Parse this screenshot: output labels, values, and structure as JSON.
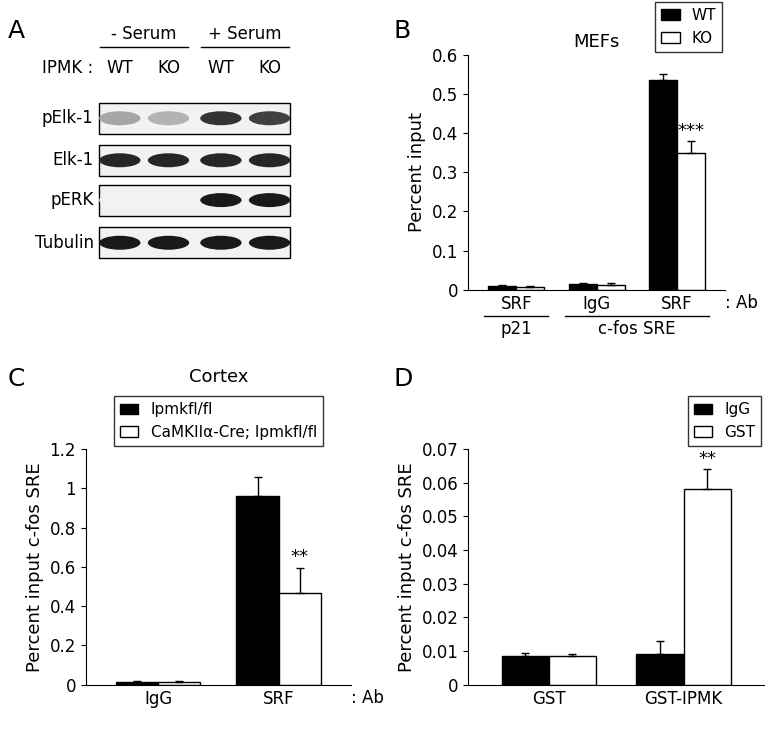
{
  "blot": {
    "panel_label": "A",
    "header_label": "IPMK :",
    "conditions": [
      {
        "label": "- Serum",
        "lanes": [
          "WT",
          "KO"
        ]
      },
      {
        "label": "+ Serum",
        "lanes": [
          "WT",
          "KO"
        ]
      }
    ],
    "rows": [
      {
        "label": "pElk-1",
        "intensity": [
          0.35,
          0.3,
          0.8,
          0.75
        ]
      },
      {
        "label": "Elk-1",
        "intensity": [
          0.85,
          0.85,
          0.85,
          0.85
        ]
      },
      {
        "label": "pERK",
        "intensity": [
          0.05,
          0.05,
          0.9,
          0.9
        ]
      },
      {
        "label": "Tubulin",
        "intensity": [
          0.9,
          0.9,
          0.9,
          0.9
        ]
      }
    ]
  },
  "chart_data": [
    {
      "panel_label": "B",
      "type": "bar",
      "title": "MEFs",
      "categories": [
        "SRF",
        "IgG",
        "SRF"
      ],
      "group_labels": [
        "p21",
        "c-fos SRE",
        "c-fos SRE"
      ],
      "x_note": ": Ab",
      "y_label": "Percent input",
      "ylim": [
        0,
        0.6
      ],
      "yticks": [
        0,
        0.1,
        0.2,
        0.3,
        0.4,
        0.5,
        0.6
      ],
      "legend": "upper right",
      "series": [
        {
          "name": "WT",
          "color": "#000000",
          "values": [
            0.01,
            0.015,
            0.535
          ],
          "errors": [
            0.002,
            0.003,
            0.015
          ],
          "marks": [
            null,
            null,
            null
          ]
        },
        {
          "name": "KO",
          "color": "#ffffff",
          "values": [
            0.008,
            0.013,
            0.35
          ],
          "errors": [
            0.002,
            0.003,
            0.03
          ],
          "marks": [
            null,
            null,
            "***"
          ]
        }
      ]
    },
    {
      "panel_label": "C",
      "type": "bar",
      "title": "Cortex",
      "categories": [
        "IgG",
        "SRF"
      ],
      "x_note": ": Ab",
      "y_label": "Percent input c-fos SRE",
      "ylim": [
        0,
        1.2
      ],
      "yticks": [
        0,
        0.2,
        0.4,
        0.6,
        0.8,
        1,
        1.2
      ],
      "legend": "upper center",
      "series": [
        {
          "name": "Ipmkfl/fl",
          "color": "#000000",
          "values": [
            0.015,
            0.96
          ],
          "errors": [
            0.005,
            0.1
          ],
          "marks": [
            null,
            null
          ]
        },
        {
          "name": "CaMKIIα-Cre; Ipmkfl/fl",
          "color": "#ffffff",
          "values": [
            0.015,
            0.465
          ],
          "errors": [
            0.005,
            0.13
          ],
          "marks": [
            null,
            "**"
          ]
        }
      ]
    },
    {
      "panel_label": "D",
      "type": "bar",
      "categories": [
        "GST",
        "GST-IPMK"
      ],
      "y_label": "Percent input c-fos SRE",
      "ylim": [
        0,
        0.07
      ],
      "yticks": [
        0,
        0.01,
        0.02,
        0.03,
        0.04,
        0.05,
        0.06,
        0.07
      ],
      "legend": "upper right",
      "series": [
        {
          "name": "IgG",
          "color": "#000000",
          "values": [
            0.0085,
            0.009
          ],
          "errors": [
            0.001,
            0.004
          ],
          "marks": [
            null,
            null
          ]
        },
        {
          "name": "GST",
          "color": "#ffffff",
          "values": [
            0.0085,
            0.058
          ],
          "errors": [
            0.0005,
            0.006
          ],
          "marks": [
            null,
            "**"
          ]
        }
      ]
    }
  ]
}
